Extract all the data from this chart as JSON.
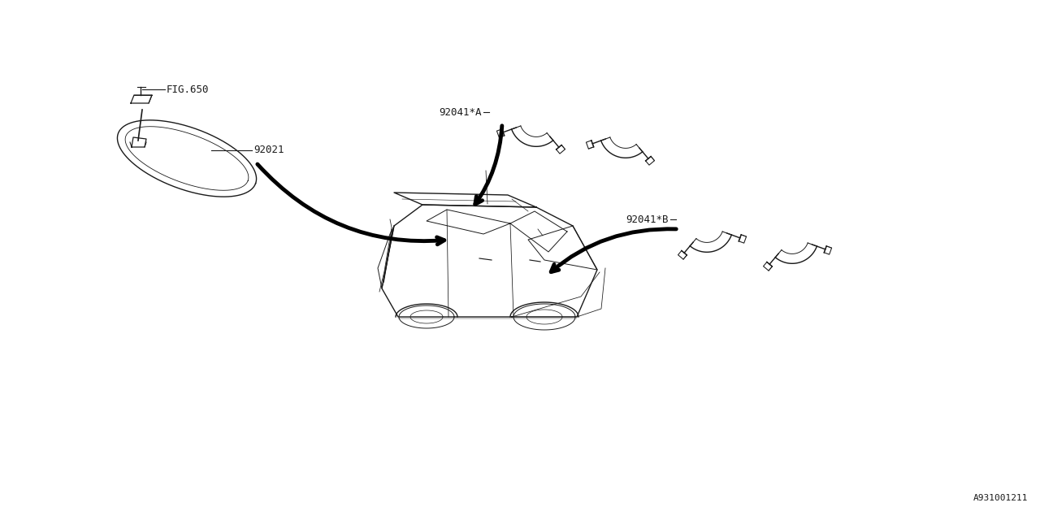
{
  "bg_color": "#ffffff",
  "line_color": "#1a1a1a",
  "title_code": "A931001211",
  "labels": {
    "fig650": "FIG.650",
    "part92021": "92021",
    "part92041A": "92041*A",
    "part92041B": "92041*B"
  },
  "font_size_labels": 8.5,
  "font_size_code": 8
}
